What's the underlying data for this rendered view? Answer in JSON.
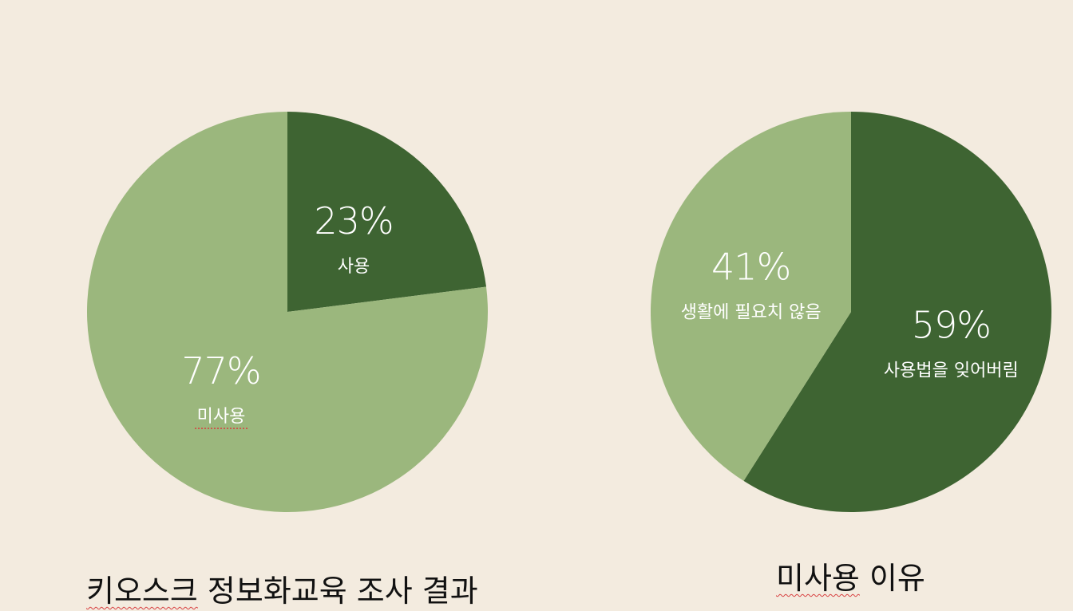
{
  "background_color": "#F3EBDF",
  "colors": {
    "dark_green": "#3E6432",
    "light_green": "#9BB77D",
    "label_text": "#FFFFFF"
  },
  "chart_data": [
    {
      "type": "pie",
      "title_parts": [
        "키오스크",
        " 정보화교육 조사 결과"
      ],
      "slices": [
        {
          "label": "사용",
          "value": 23,
          "value_label": "23%",
          "color": "#3E6432"
        },
        {
          "label": "미사용",
          "value": 77,
          "value_label": "77%",
          "color": "#9BB77D"
        }
      ],
      "start_angle_deg": 0,
      "direction": "clockwise"
    },
    {
      "type": "pie",
      "title_parts": [
        "미사용",
        " 이유"
      ],
      "slices": [
        {
          "label": "사용법을 잊어버림",
          "value": 59,
          "value_label": "59%",
          "color": "#3E6432"
        },
        {
          "label": "생활에 필요치 않음",
          "value": 41,
          "value_label": "41%",
          "color": "#9BB77D"
        }
      ],
      "start_angle_deg": 0,
      "direction": "clockwise"
    }
  ]
}
